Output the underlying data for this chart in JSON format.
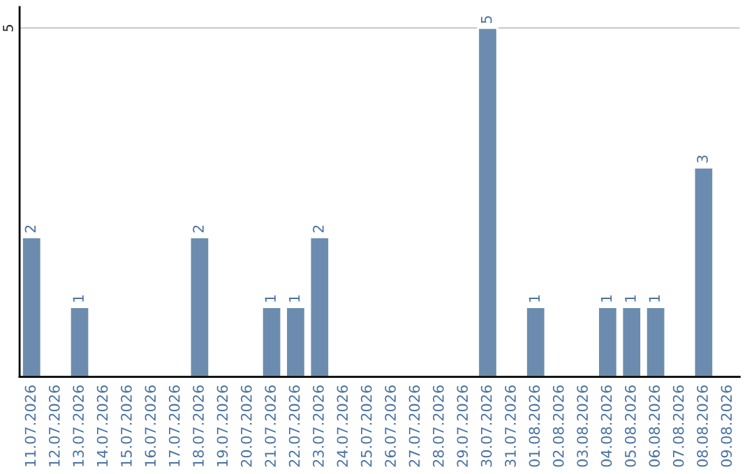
{
  "chart_data": {
    "type": "bar",
    "categories": [
      "11.07.2026",
      "12.07.2026",
      "13.07.2026",
      "14.07.2026",
      "15.07.2026",
      "16.07.2026",
      "17.07.2026",
      "18.07.2026",
      "19.07.2026",
      "20.07.2026",
      "21.07.2026",
      "22.07.2026",
      "23.07.2026",
      "24.07.2026",
      "25.07.2026",
      "26.07.2026",
      "27.07.2026",
      "28.07.2026",
      "29.07.2026",
      "30.07.2026",
      "31.07.2026",
      "01.08.2026",
      "02.08.2026",
      "03.08.2026",
      "04.08.2026",
      "05.08.2026",
      "06.08.2026",
      "07.08.2026",
      "08.08.2026",
      "09.08.2026"
    ],
    "values": [
      2,
      null,
      1,
      null,
      null,
      null,
      null,
      2,
      null,
      null,
      1,
      1,
      2,
      null,
      null,
      null,
      null,
      null,
      null,
      5,
      null,
      1,
      null,
      null,
      1,
      1,
      1,
      null,
      3,
      null
    ],
    "value_labels": [
      "2",
      null,
      "1",
      null,
      null,
      null,
      null,
      "2",
      null,
      null,
      "1",
      "1",
      "2",
      null,
      null,
      null,
      null,
      null,
      null,
      "5",
      null,
      "1",
      null,
      null,
      "1",
      "1",
      "1",
      null,
      "3",
      null
    ],
    "color": "#6b8cae",
    "ylim": [
      0,
      5.3
    ],
    "yticks": [
      5
    ],
    "grid": "y"
  }
}
